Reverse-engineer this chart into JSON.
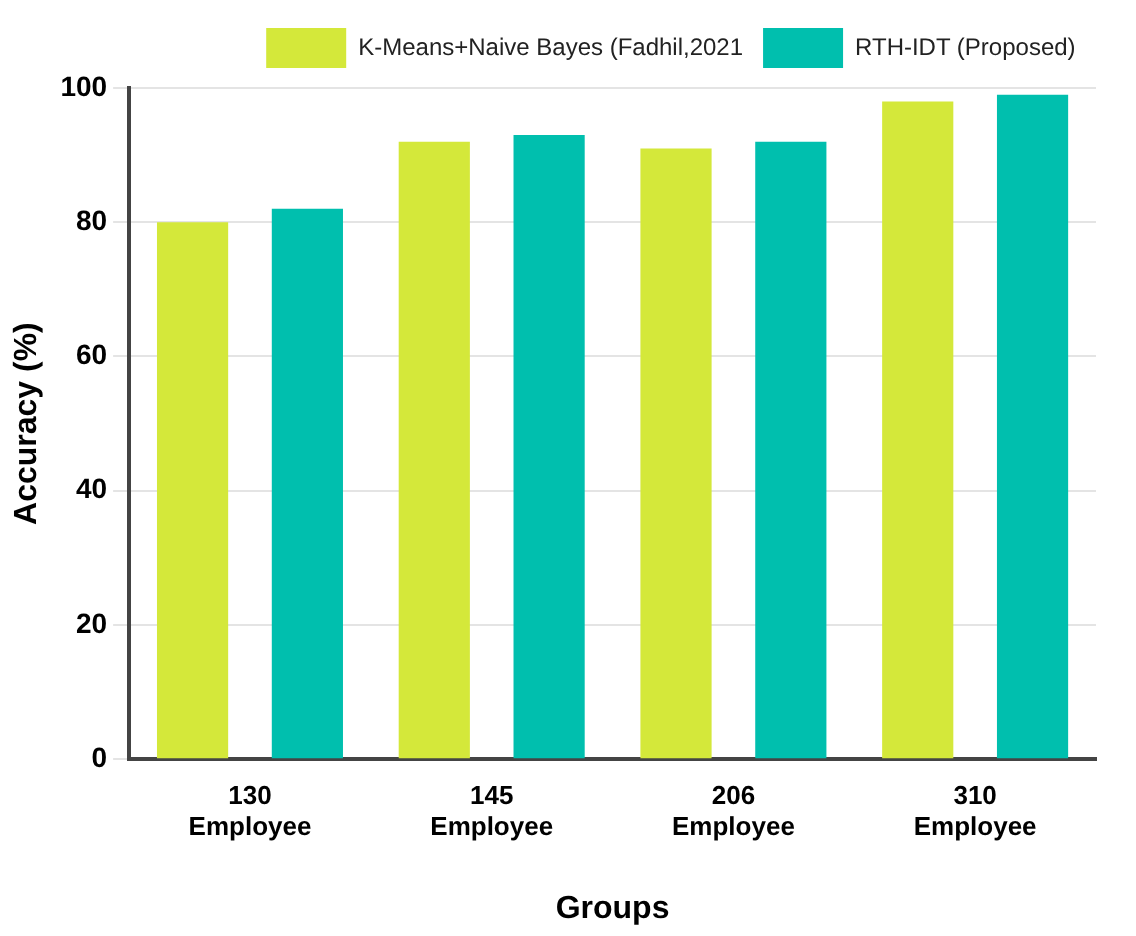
{
  "chart_data": {
    "type": "bar",
    "xlabel": "Groups",
    "ylabel": "Accuracy (%)",
    "categories": [
      "130 Employee",
      "145 Employee",
      "206 Employee",
      "310 Employee"
    ],
    "series": [
      {
        "name": "K-Means+Naive Bayes (Fadhil,2021",
        "color": "#d4e83a",
        "values": [
          80,
          92,
          91,
          98
        ]
      },
      {
        "name": "RTH-IDT (Proposed)",
        "color": "#00bfae",
        "values": [
          82,
          93,
          92,
          99
        ]
      }
    ],
    "ylim": [
      0,
      100
    ],
    "yticks": [
      0,
      20,
      40,
      60,
      80,
      100
    ],
    "grid": "y",
    "legend": "top right"
  }
}
